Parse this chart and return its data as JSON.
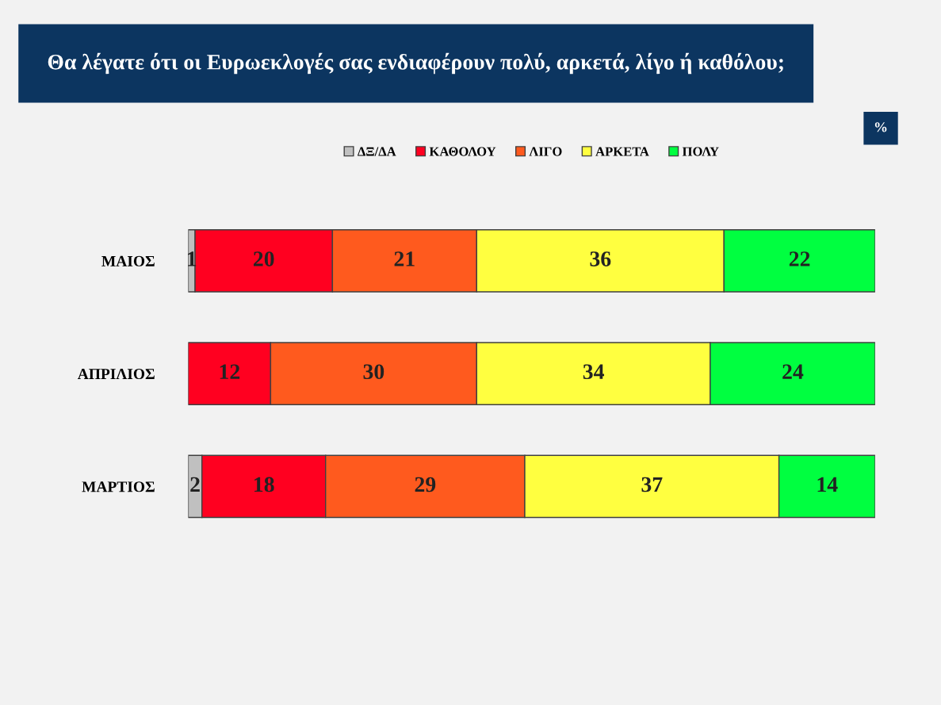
{
  "chart_data": {
    "type": "bar",
    "orientation": "horizontal",
    "stacked": true,
    "title": "Θα λέγατε ότι οι Ευρωεκλογές σας ενδιαφέρουν πολύ, αρκετά, λίγο ή καθόλου;",
    "annotations": [
      "%"
    ],
    "categories": [
      "ΜΑΙΟΣ",
      "ΑΠΡΙΛΙΟΣ",
      "ΜΑΡΤΙΟΣ"
    ],
    "series": [
      {
        "name": "ΔΞ/ΔΑ",
        "color": "#c0c0c0",
        "values": [
          1,
          null,
          2
        ]
      },
      {
        "name": "ΚΑΘΟΛΟΥ",
        "color": "#ff0020",
        "values": [
          20,
          12,
          18
        ]
      },
      {
        "name": "ΛΙΓΟ",
        "color": "#ff5a1e",
        "values": [
          21,
          30,
          29
        ]
      },
      {
        "name": "ΑΡΚΕΤΑ",
        "color": "#ffff40",
        "values": [
          36,
          34,
          37
        ]
      },
      {
        "name": "ΠΟΛΥ",
        "color": "#00ff40",
        "values": [
          22,
          24,
          14
        ]
      }
    ],
    "data_labels": true,
    "legend": "top",
    "grid": false,
    "tick_labels": "y"
  }
}
